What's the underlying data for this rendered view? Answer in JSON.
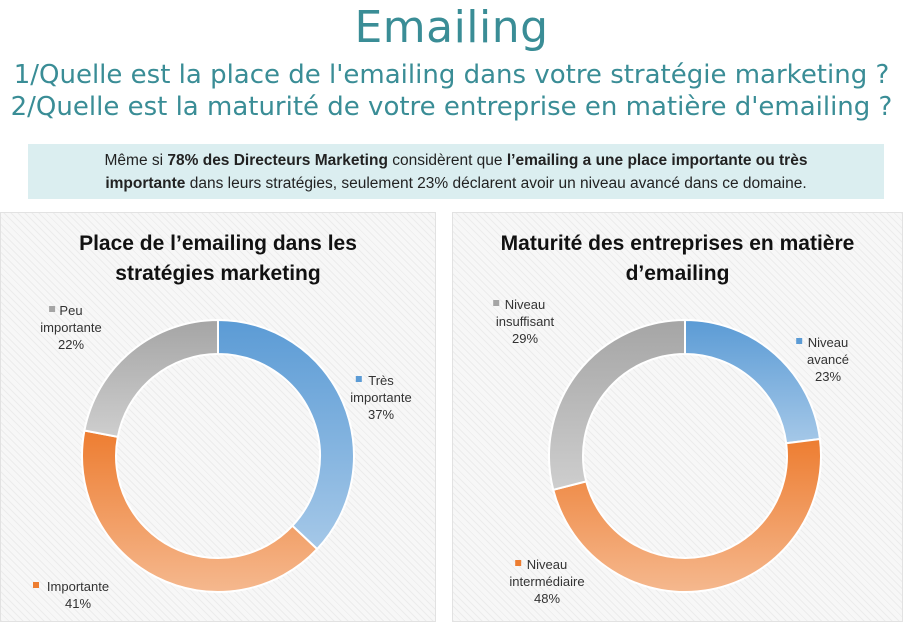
{
  "header": {
    "title": "Emailing",
    "question_1": "1/Quelle est la place de l'emailing dans votre stratégie marketing ?",
    "question_2": "2/Quelle est la maturité de votre entreprise en matière d'emailing ?"
  },
  "summary": {
    "part1": "Même si ",
    "bold1": "78% des Directeurs Marketing",
    "part2": " considèrent que ",
    "bold2a": "l’emailing a une place importante ou très",
    "bold2b": "importante",
    "part3": " dans leurs stratégies, seulement 23% déclarent avoir un niveau avancé dans ce domaine."
  },
  "colors": {
    "blue": "#5b9bd5",
    "orange": "#ed7d31",
    "gray": "#a5a5a5",
    "title_teal": "#3a8d96",
    "summary_bg": "#dbeef0"
  },
  "chart_data": [
    {
      "type": "pie",
      "variant": "donut",
      "title_line1": "Place de l’emailing dans les",
      "title_line2": "stratégies marketing",
      "slices": [
        {
          "label_lines": [
            "Très",
            "importante"
          ],
          "value": 37,
          "value_label": "37%",
          "color": "#5b9bd5"
        },
        {
          "label_lines": [
            "Importante"
          ],
          "value": 41,
          "value_label": "41%",
          "color": "#ed7d31"
        },
        {
          "label_lines": [
            "Peu",
            "importante"
          ],
          "value": 22,
          "value_label": "22%",
          "color": "#a5a5a5"
        }
      ]
    },
    {
      "type": "pie",
      "variant": "donut",
      "title_line1": "Maturité des entreprises en matière",
      "title_line2": "d’emailing",
      "slices": [
        {
          "label_lines": [
            "Niveau",
            "avancé"
          ],
          "value": 23,
          "value_label": "23%",
          "color": "#5b9bd5"
        },
        {
          "label_lines": [
            "Niveau",
            "intermédiaire"
          ],
          "value": 48,
          "value_label": "48%",
          "color": "#ed7d31"
        },
        {
          "label_lines": [
            "Niveau",
            "insuffisant"
          ],
          "value": 29,
          "value_label": "29%",
          "color": "#a5a5a5"
        }
      ]
    }
  ]
}
